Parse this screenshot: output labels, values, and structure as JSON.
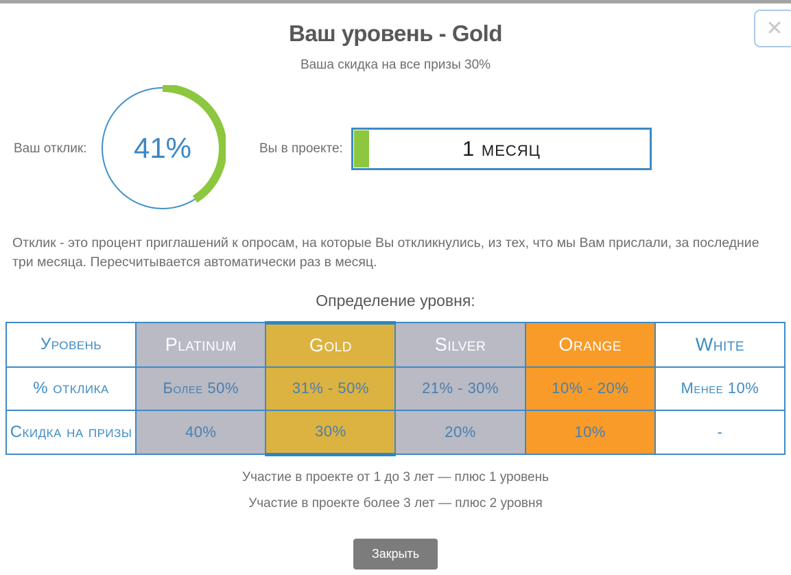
{
  "modal": {
    "title": "Ваш уровень - Gold",
    "subtitle": "Ваша скидка на все призы 30%",
    "close_icon": "✕"
  },
  "gauge": {
    "label": "Ваш отклик:",
    "percent": 41,
    "percent_label": "41%"
  },
  "project": {
    "label": "Вы в проекте:",
    "value": "1 месяц",
    "progress_percent": 5
  },
  "description": "Отклик - это процент приглашений к опросам, на которые Вы откликнулись, из тех, что мы Вам прислали, за последние три месяца. Пересчитывается автоматически раз в месяц.",
  "table": {
    "heading": "Определение уровня:",
    "row_headers": [
      "Уровень",
      "% отклика",
      "Скидка на призы"
    ],
    "columns": [
      {
        "name": "Platinum",
        "response": "Более 50%",
        "discount": "40%",
        "bg": "#b9bac4",
        "highlighted": false
      },
      {
        "name": "Gold",
        "response": "31% - 50%",
        "discount": "30%",
        "bg": "#dcb240",
        "highlighted": true
      },
      {
        "name": "Silver",
        "response": "21% - 30%",
        "discount": "20%",
        "bg": "#b9bac4",
        "highlighted": false
      },
      {
        "name": "Orange",
        "response": "10% - 20%",
        "discount": "10%",
        "bg": "#f89b28",
        "highlighted": false
      },
      {
        "name": "White",
        "response": "Менее 10%",
        "discount": "-",
        "bg": "#ffffff",
        "highlighted": false
      }
    ]
  },
  "notes": [
    "Участие в проекте от 1 до 3 лет — плюс 1 уровень",
    "Участие в проекте более 3 лет — плюс 2 уровня"
  ],
  "footer": {
    "close_label": "Закрыть"
  },
  "colors": {
    "accent_blue": "#3d89c6",
    "highlight_border_blue": "#2b86c4",
    "cell_text_blue": "#4a7fae",
    "green": "#8dc63f",
    "gold": "#dcb240",
    "silver_gray": "#b9bac4",
    "orange": "#f89b28",
    "text_gray": "#6d6e71",
    "title_gray": "#58585a",
    "button_gray": "#7c7c7c"
  }
}
